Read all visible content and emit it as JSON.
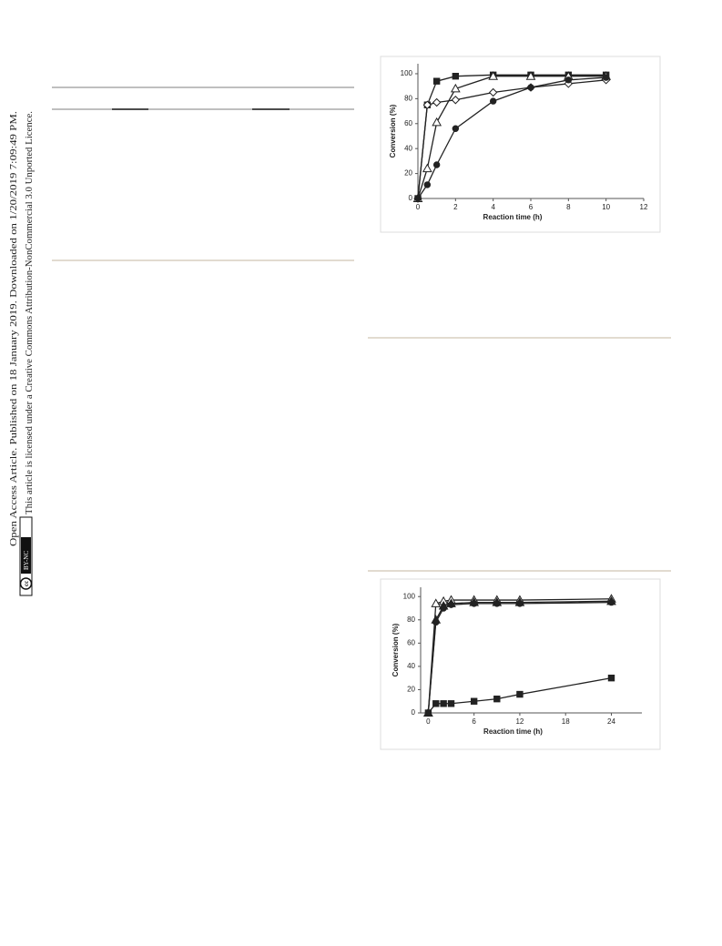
{
  "sidebar": {
    "line1": "Open Access Article. Published on 18 January 2019. Downloaded on 1/20/2019 7:09:49 PM.",
    "line2": "This article is licensed under a Creative Commons Attribution-NonCommercial 3.0 Unported Licence.",
    "cc_logo": "cc",
    "license_badge": "BY-NC"
  },
  "chart_data": [
    {
      "type": "line",
      "xlabel": "Reaction time (h)",
      "ylabel": "Conversion (%)",
      "xlim": [
        0,
        12
      ],
      "xticks": [
        0,
        2,
        4,
        6,
        8,
        10,
        12
      ],
      "ylim": [
        0,
        108
      ],
      "yticks": [
        0,
        20,
        40,
        60,
        80,
        100
      ],
      "series": [
        {
          "marker": "square",
          "filled": true,
          "color": "#222222",
          "x": [
            0,
            0.5,
            1,
            2,
            4,
            6,
            8,
            10
          ],
          "values": [
            0,
            75,
            94,
            98,
            99,
            99,
            99,
            99
          ]
        },
        {
          "marker": "triangle",
          "filled": false,
          "color": "#222222",
          "x": [
            0,
            0.5,
            1,
            2,
            4,
            6,
            8,
            10
          ],
          "values": [
            0,
            24,
            61,
            88,
            98,
            98,
            98,
            98
          ]
        },
        {
          "marker": "diamond",
          "filled": false,
          "color": "#222222",
          "x": [
            0,
            0.5,
            1,
            2,
            4,
            6,
            8,
            10
          ],
          "values": [
            0,
            75,
            77,
            79,
            85,
            89,
            92,
            95
          ]
        },
        {
          "marker": "circle",
          "filled": true,
          "color": "#222222",
          "x": [
            0,
            0.5,
            1,
            2,
            4,
            6,
            8,
            10
          ],
          "values": [
            0,
            11,
            27,
            56,
            78,
            89,
            95,
            97
          ]
        }
      ]
    },
    {
      "type": "line",
      "xlabel": "Reaction  time (h)",
      "ylabel": "Conversion (%)",
      "xlim": [
        -1,
        28
      ],
      "xticks": [
        0,
        6,
        12,
        18,
        24
      ],
      "ylim": [
        0,
        108
      ],
      "yticks": [
        0,
        20,
        40,
        60,
        80,
        100
      ],
      "series": [
        {
          "marker": "triangle",
          "filled": false,
          "color": "#222222",
          "x": [
            0,
            1,
            2,
            3,
            6,
            9,
            12,
            24
          ],
          "values": [
            0,
            94,
            96,
            97,
            97,
            97,
            97,
            98
          ]
        },
        {
          "marker": "triangle",
          "filled": true,
          "color": "#222222",
          "x": [
            0,
            1,
            2,
            3,
            6,
            9,
            12,
            24
          ],
          "values": [
            0,
            80,
            92,
            94,
            95,
            95,
            95,
            96
          ]
        },
        {
          "marker": "circle",
          "filled": true,
          "color": "#222222",
          "x": [
            0,
            1,
            2,
            3,
            6,
            9,
            12,
            24
          ],
          "values": [
            0,
            78,
            90,
            93,
            94,
            94,
            94,
            95
          ]
        },
        {
          "marker": "square",
          "filled": true,
          "color": "#222222",
          "x": [
            0,
            1,
            2,
            3,
            6,
            9,
            12,
            24
          ],
          "values": [
            0,
            8,
            8,
            8,
            10,
            12,
            16,
            30
          ]
        }
      ]
    }
  ]
}
